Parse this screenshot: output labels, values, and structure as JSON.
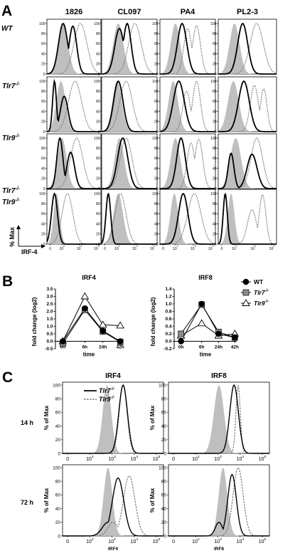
{
  "panels": {
    "A": {
      "letter": "A",
      "columns": [
        "1826",
        "CL097",
        "PA4",
        "PL2-3"
      ],
      "rows": [
        {
          "label": "WT",
          "sup": ""
        },
        {
          "label": "Tlr7",
          "sup": "-/-"
        },
        {
          "label": "Tlr9",
          "sup": "-/-"
        },
        {
          "label": "Tlr7",
          "sup": "-/-",
          "label2": "Tlr9",
          "sup2": "-/-"
        }
      ],
      "yticks": [
        "0",
        "20",
        "40",
        "60",
        "80",
        "100"
      ],
      "xticks": [
        "0",
        "10",
        "10",
        "10"
      ],
      "xtick_exps": [
        "",
        "2",
        "3",
        "4"
      ],
      "ylabel": "% Max",
      "xlabel": "IRF-4"
    },
    "B": {
      "letter": "B",
      "ylabel": "fold change (log2)",
      "xlabel": "time",
      "legend": [
        {
          "name": "WT",
          "sup": "",
          "italic": false
        },
        {
          "name": "Tlr7",
          "sup": "-/-",
          "italic": true
        },
        {
          "name": "Tlr9",
          "sup": "-/-",
          "italic": true
        }
      ]
    },
    "C": {
      "letter": "C",
      "titles": [
        "IRF4",
        "IRF8"
      ],
      "row_labels": [
        "14 h",
        "72 h"
      ],
      "ylabel": "% of Max",
      "xlabels": [
        "IRF4",
        "IRF8"
      ],
      "yticks": [
        "0",
        "20",
        "40",
        "60",
        "80",
        "100"
      ],
      "xticks": [
        "0",
        "10",
        "10",
        "10",
        "10"
      ],
      "xtick_exps": [
        "",
        "2",
        "3",
        "4",
        "5"
      ],
      "legend": [
        {
          "name": "Tlr7",
          "sup": "-/-"
        },
        {
          "name": "Tlr9",
          "sup": "-/-"
        }
      ]
    }
  },
  "chart_data": [
    {
      "type": "line",
      "title": "IRF4",
      "categories": [
        "0h",
        "6h",
        "24h",
        "42h"
      ],
      "series": [
        {
          "name": "WT",
          "values": [
            0,
            2.2,
            0.7,
            0.0
          ]
        },
        {
          "name": "Tlr7-/-",
          "values": [
            -0.15,
            2.1,
            0.65,
            -0.05
          ]
        },
        {
          "name": "Tlr9-/-",
          "values": [
            0,
            3.0,
            1.1,
            1.05
          ]
        }
      ],
      "yticks": [
        "-0.5",
        "0.0",
        "0.5",
        "1.0",
        "1.5",
        "2.0",
        "2.5",
        "3.0",
        "3.5"
      ],
      "ylim": [
        -0.5,
        3.5
      ],
      "xlabel": "time",
      "ylabel": "fold change (log2)"
    },
    {
      "type": "line",
      "title": "IRF8",
      "categories": [
        "0h",
        "6h",
        "24h",
        "42h"
      ],
      "series": [
        {
          "name": "WT",
          "values": [
            0.0,
            1.0,
            0.2,
            0.1
          ]
        },
        {
          "name": "Tlr7-/-",
          "values": [
            0.2,
            0.98,
            0.25,
            0.1
          ]
        },
        {
          "name": "Tlr9-/-",
          "values": [
            0.15,
            0.48,
            0.15,
            0.2
          ]
        }
      ],
      "yticks": [
        "-0.2",
        "0.0",
        "0.2",
        "0.4",
        "0.6",
        "0.8",
        "1.0",
        "1.2",
        "1.4"
      ],
      "ylim": [
        -0.2,
        1.4
      ],
      "xlabel": "time",
      "ylabel": "fold change (log2)"
    }
  ],
  "colors": {
    "shade": "#bfbfbf",
    "solid": "#000000",
    "dotted": "#7a7a7a",
    "marker_tlr7": "#8c8c8c"
  }
}
